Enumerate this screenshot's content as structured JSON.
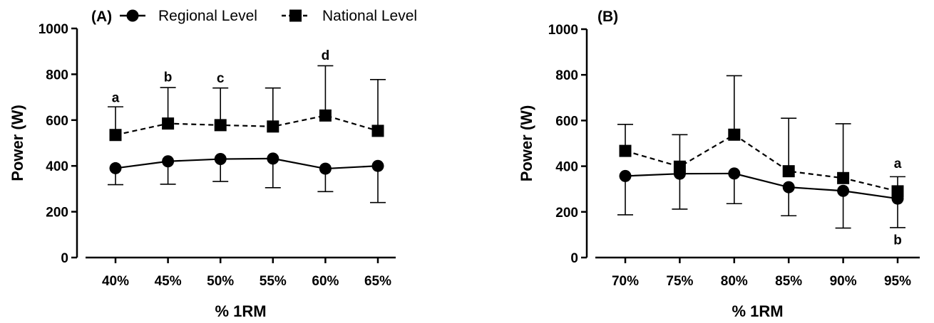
{
  "chart_data": [
    {
      "type": "line",
      "panel_label": "(A)",
      "categories": [
        "40%",
        "45%",
        "50%",
        "55%",
        "60%",
        "65%"
      ],
      "xlabel": "% 1RM",
      "ylabel": "Power (W)",
      "ylim": [
        0,
        1000
      ],
      "yticks": [
        0,
        200,
        400,
        600,
        800,
        1000
      ],
      "grid": false,
      "legend": {
        "placement": "top",
        "entries": [
          {
            "name": "Regional Level",
            "marker": "circle",
            "line": "solid"
          },
          {
            "name": "National Level",
            "marker": "square",
            "line": "dashed"
          }
        ]
      },
      "series": [
        {
          "name": "Regional Level",
          "marker": "circle",
          "line": "solid",
          "values": [
            390,
            420,
            430,
            432,
            388,
            400
          ],
          "error": [
            72,
            100,
            98,
            127,
            100,
            160
          ],
          "error_dir": "down"
        },
        {
          "name": "National Level",
          "marker": "square",
          "line": "dashed",
          "values": [
            535,
            585,
            578,
            572,
            620,
            553
          ],
          "error": [
            123,
            157,
            162,
            168,
            217,
            224
          ],
          "error_dir": "up"
        }
      ],
      "annotations": [
        {
          "category": "40%",
          "text": "a",
          "y": 700
        },
        {
          "category": "45%",
          "text": "b",
          "y": 790
        },
        {
          "category": "50%",
          "text": "c",
          "y": 785
        },
        {
          "category": "60%",
          "text": "d",
          "y": 885
        }
      ]
    },
    {
      "type": "line",
      "panel_label": "(B)",
      "categories": [
        "70%",
        "75%",
        "80%",
        "85%",
        "90%",
        "95%"
      ],
      "xlabel": "% 1RM",
      "ylabel": "Power (W)",
      "ylim": [
        0,
        1000
      ],
      "yticks": [
        0,
        200,
        400,
        600,
        800,
        1000
      ],
      "grid": false,
      "series": [
        {
          "name": "Regional Level",
          "marker": "circle",
          "line": "solid",
          "values": [
            357,
            367,
            368,
            308,
            292,
            258
          ],
          "error": [
            170,
            155,
            132,
            125,
            163,
            127
          ],
          "error_dir": "down"
        },
        {
          "name": "National Level",
          "marker": "square",
          "line": "dashed",
          "values": [
            467,
            398,
            538,
            378,
            348,
            290
          ],
          "error": [
            116,
            140,
            258,
            232,
            238,
            64
          ],
          "error_dir": "up"
        }
      ],
      "annotations": [
        {
          "category": "95%",
          "text": "a",
          "y": 415
        },
        {
          "category": "95%",
          "text": "b",
          "y": 80
        }
      ]
    }
  ]
}
